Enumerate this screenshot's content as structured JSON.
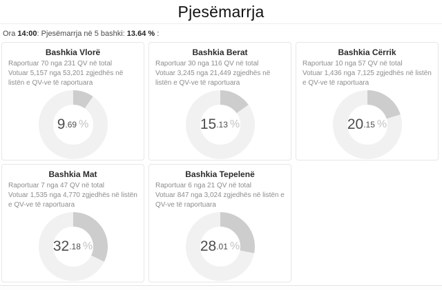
{
  "header": {
    "title": "Pjesëmarrja"
  },
  "summary": {
    "time": "14:00",
    "municipalities": 5,
    "total_percent": "13.64 %",
    "parts": [
      {
        "text": "Ora ",
        "bold": false
      },
      {
        "text": "14:00",
        "bold": true
      },
      {
        "text": ": Pjesëmarrja në 5 bashki: ",
        "bold": false
      },
      {
        "text": "13.64 %",
        "bold": true
      },
      {
        "text": " :",
        "bold": false
      }
    ]
  },
  "colors": {
    "donut_track": "#f1f1f1",
    "donut_slice": "#cdcdcd",
    "percent_number": "#4d4d4d",
    "percent_sign": "#c2c2c2",
    "card_border": "#e7e7e7",
    "body_text": "#8c8c8c"
  },
  "chart_data": [
    {
      "type": "donut",
      "title": "Bashkia Vlorë",
      "percent": 9.69,
      "center_label": "9.69 %",
      "reported_line": "Raportuar 70 nga 231 QV në total",
      "voted_line": "Votuar 5,157 nga 53,201 zgjedhës në listën e QV-ve të raportuara"
    },
    {
      "type": "donut",
      "title": "Bashkia Berat",
      "percent": 15.13,
      "center_label": "15.13 %",
      "reported_line": "Raportuar 30 nga 116 QV në total",
      "voted_line": "Votuar 3,245 nga 21,449 zgjedhës në listën e QV-ve të raportuara"
    },
    {
      "type": "donut",
      "title": "Bashkia Cërrik",
      "percent": 20.15,
      "center_label": "20.15 %",
      "reported_line": "Raportuar 10 nga 57 QV në total",
      "voted_line": "Votuar 1,436 nga 7,125 zgjedhës në listën e QV-ve të raportuara"
    },
    {
      "type": "donut",
      "title": "Bashkia Mat",
      "percent": 32.18,
      "center_label": "32.18 %",
      "reported_line": "Raportuar 7 nga 47 QV në total",
      "voted_line": "Votuar 1,535 nga 4,770 zgjedhës në listën e QV-ve të raportuara"
    },
    {
      "type": "donut",
      "title": "Bashkia Tepelenë",
      "percent": 28.01,
      "center_label": "28.01 %",
      "reported_line": "Raportuar 6 nga 21 QV në total",
      "voted_line": "Votuar 847 nga 3,024 zgjedhës në listën e QV-ve të raportuara"
    }
  ]
}
